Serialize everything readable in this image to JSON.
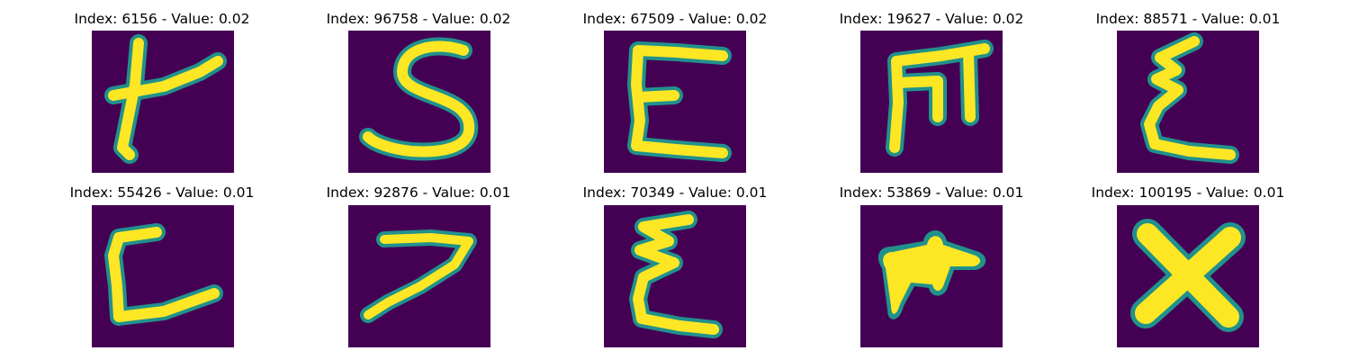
{
  "colors": {
    "background": "#440154",
    "edge": "#21918c",
    "mid": "#5ec962",
    "stroke": "#fde725"
  },
  "panels": [
    {
      "title": "Index: 6156 - Value: 0.02",
      "glyph": "t-stroke-icon"
    },
    {
      "title": "Index: 96758 - Value: 0.02",
      "glyph": "s-letter-icon"
    },
    {
      "title": "Index: 67509 - Value: 0.02",
      "glyph": "e-letter-icon"
    },
    {
      "title": "Index: 19627 - Value: 0.02",
      "glyph": "m-letter-icon"
    },
    {
      "title": "Index: 88571 - Value: 0.01",
      "glyph": "epsilon-icon"
    },
    {
      "title": "Index: 55426 - Value: 0.01",
      "glyph": "l-letter-icon"
    },
    {
      "title": "Index: 92876 - Value: 0.01",
      "glyph": "seven-icon"
    },
    {
      "title": "Index: 70349 - Value: 0.01",
      "glyph": "epsilon-icon"
    },
    {
      "title": "Index: 53869 - Value: 0.01",
      "glyph": "blob-icon"
    },
    {
      "title": "Index: 100195 - Value: 0.01",
      "glyph": "x-letter-icon"
    }
  ]
}
